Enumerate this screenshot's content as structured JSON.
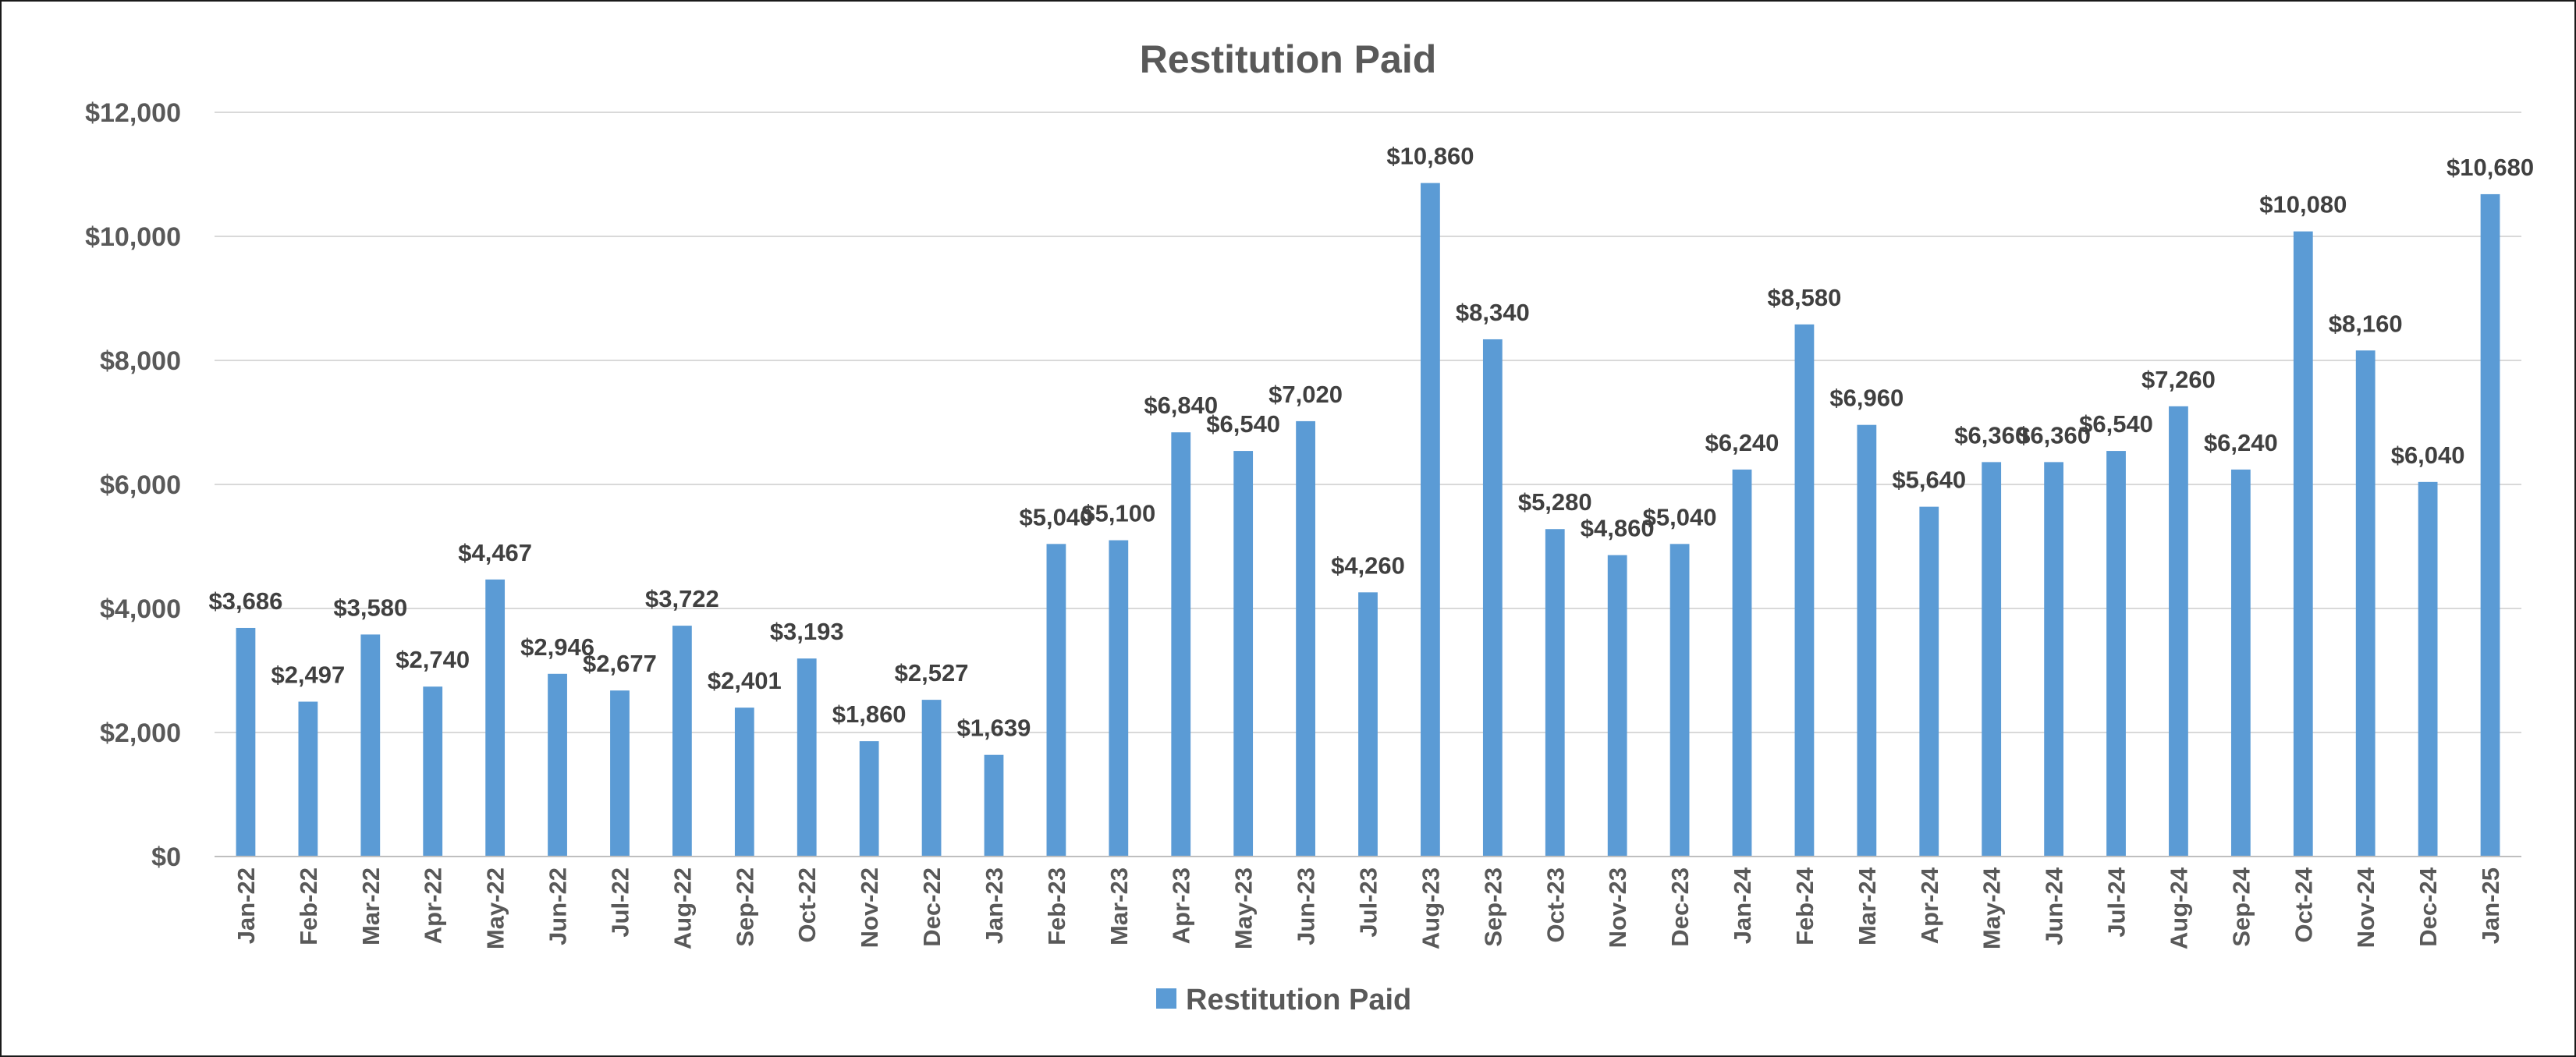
{
  "chart_data": {
    "type": "bar",
    "title": "Restitution Paid",
    "xlabel": "",
    "ylabel": "",
    "ylim": [
      0,
      12000
    ],
    "ytick_step": 2000,
    "grid": true,
    "legend_position": "bottom",
    "bar_color": "#5b9bd5",
    "categories": [
      "Jan-22",
      "Feb-22",
      "Mar-22",
      "Apr-22",
      "May-22",
      "Jun-22",
      "Jul-22",
      "Aug-22",
      "Sep-22",
      "Oct-22",
      "Nov-22",
      "Dec-22",
      "Jan-23",
      "Feb-23",
      "Mar-23",
      "Apr-23",
      "May-23",
      "Jun-23",
      "Jul-23",
      "Aug-23",
      "Sep-23",
      "Oct-23",
      "Nov-23",
      "Dec-23",
      "Jan-24",
      "Feb-24",
      "Mar-24",
      "Apr-24",
      "May-24",
      "Jun-24",
      "Jul-24",
      "Aug-24",
      "Sep-24",
      "Oct-24",
      "Nov-24",
      "Dec-24",
      "Jan-25"
    ],
    "series": [
      {
        "name": "Restitution Paid",
        "values": [
          3686,
          2497,
          3580,
          2740,
          4467,
          2946,
          2677,
          3722,
          2401,
          3193,
          1860,
          2527,
          1639,
          5040,
          5100,
          6840,
          6540,
          7020,
          4260,
          10860,
          8340,
          5280,
          4860,
          5040,
          6240,
          8580,
          6960,
          5640,
          6360,
          6360,
          6540,
          7260,
          6240,
          10080,
          8160,
          6040,
          10680
        ]
      }
    ]
  }
}
